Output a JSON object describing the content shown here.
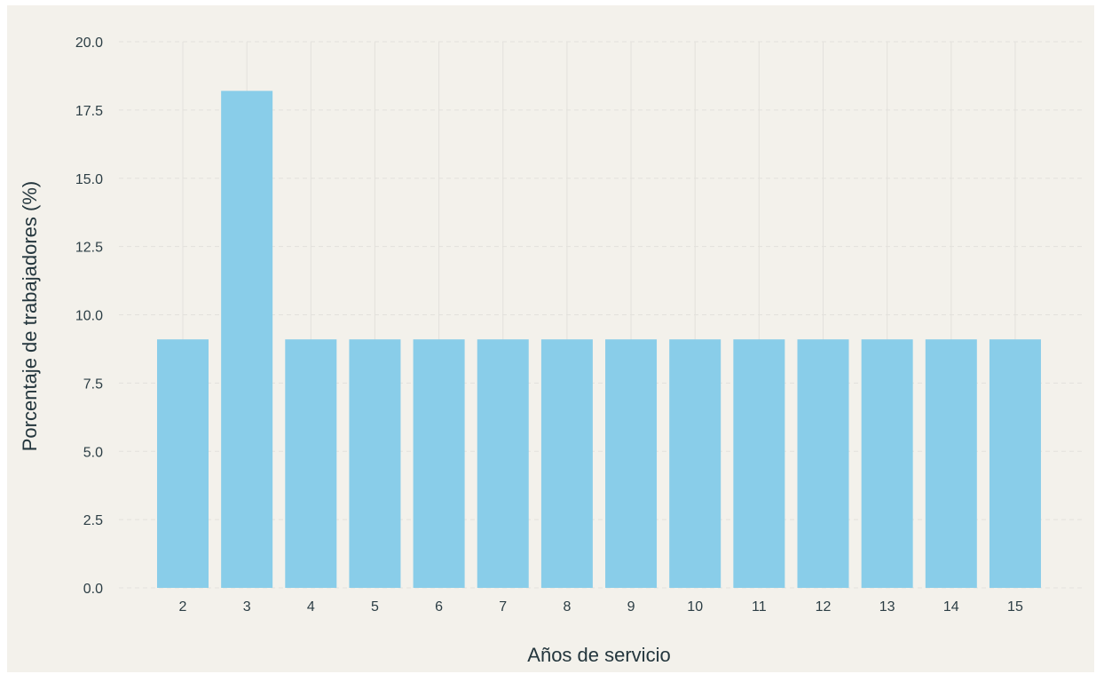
{
  "chart_data": {
    "type": "bar",
    "title": "",
    "xlabel": "Años de servicio",
    "ylabel": "Porcentaje de trabajadores (%)",
    "categories": [
      "2",
      "3",
      "4",
      "5",
      "6",
      "7",
      "8",
      "9",
      "10",
      "11",
      "12",
      "13",
      "14",
      "15"
    ],
    "values": [
      9.1,
      18.2,
      9.1,
      9.1,
      9.1,
      9.1,
      9.1,
      9.1,
      9.1,
      9.1,
      9.1,
      9.1,
      9.1,
      9.1
    ],
    "ylim": [
      0,
      20
    ],
    "yticks": [
      "0.0",
      "2.5",
      "5.0",
      "7.5",
      "10.0",
      "12.5",
      "15.0",
      "17.5",
      "20.0"
    ],
    "grid": true,
    "legend": "none"
  },
  "colors": {
    "background": "#f3f1eb",
    "bar": "#89cde9",
    "grid": "#e3e1dc",
    "text": "#2c3e45"
  }
}
